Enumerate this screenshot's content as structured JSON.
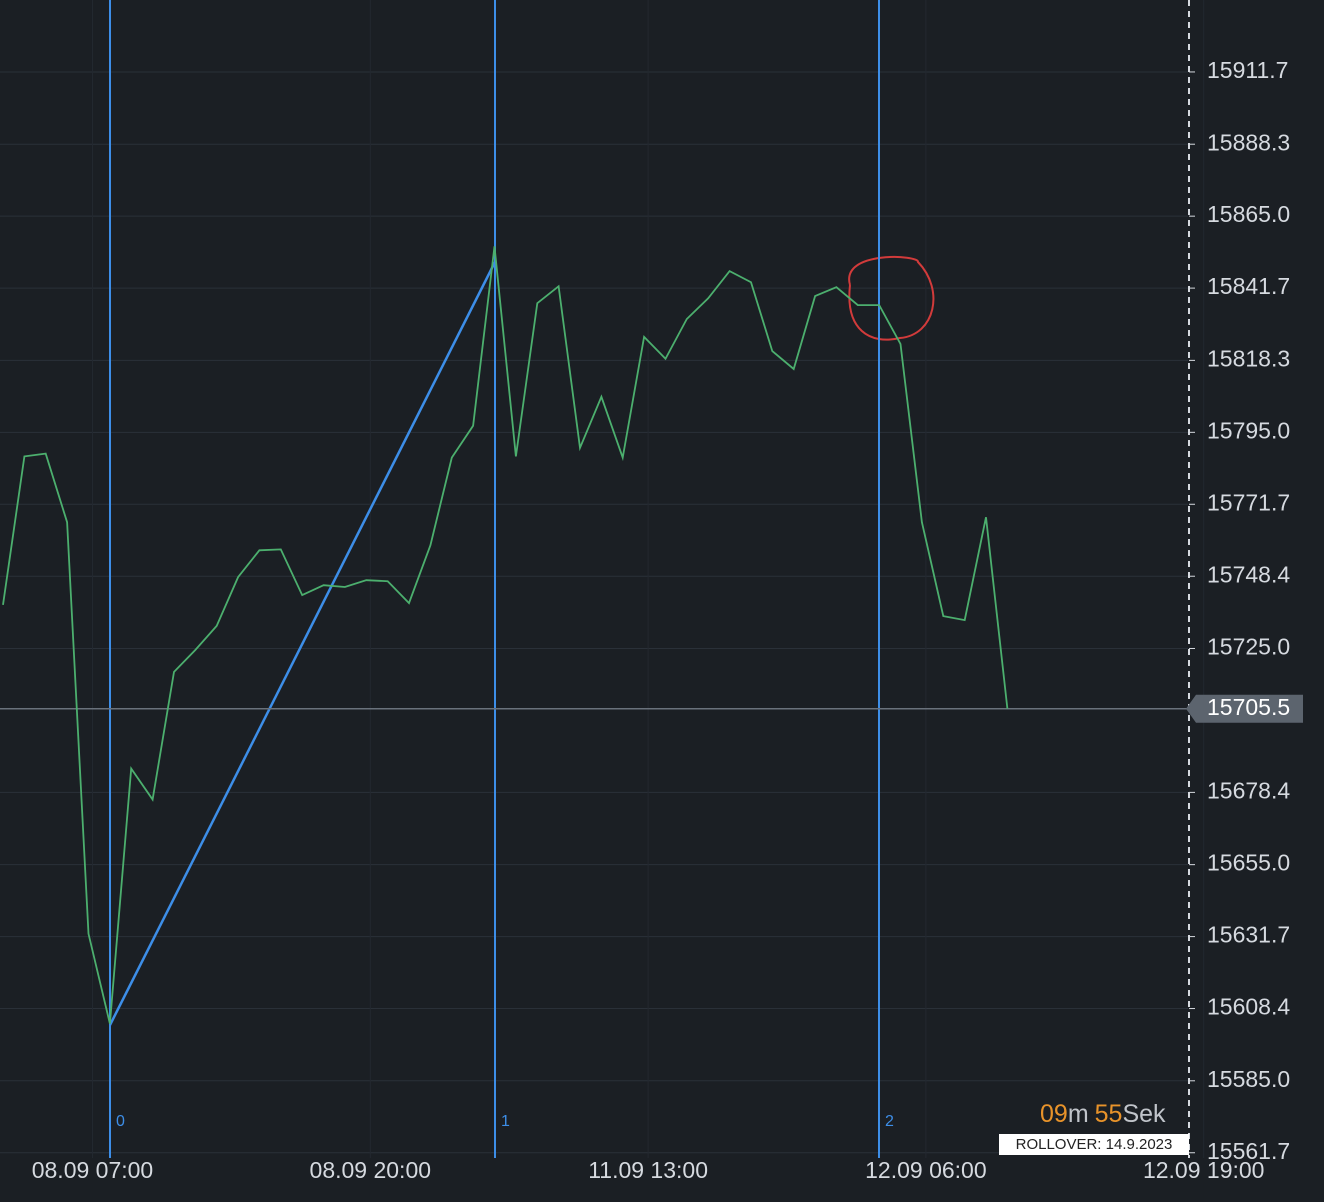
{
  "chart_data": {
    "type": "line",
    "categories": [
      null,
      null,
      null,
      null,
      "08.09 07:00",
      null,
      null,
      null,
      null,
      null,
      null,
      null,
      null,
      null,
      null,
      null,
      null,
      "08.09 20:00",
      null,
      null,
      null,
      null,
      null,
      null,
      null,
      null,
      null,
      null,
      null,
      null,
      "11.09 13:00",
      null,
      null,
      null,
      null,
      null,
      null,
      null,
      null,
      null,
      null,
      null,
      null,
      "12.09 06:00",
      null,
      null,
      null,
      null,
      null,
      null,
      null,
      null,
      null,
      null,
      null,
      null,
      "12.09 19:00"
    ],
    "series": [
      {
        "color": "#4caf6e",
        "values": [
          15739.1,
          15787.2,
          15788.1,
          15765.9,
          15632.6,
          15603.5,
          15686.1,
          15676.1,
          15717.4,
          15724.5,
          15732.3,
          15748.1,
          15756.8,
          15757.1,
          15742.3,
          15745.5,
          15744.9,
          15747.1,
          15746.8,
          15739.7,
          15758.4,
          15786.8,
          15797.1,
          15855.2,
          15787.2,
          15836.8,
          15842.3,
          15790.0,
          15806.5,
          15786.8,
          15825.9,
          15818.8,
          15831.7,
          15838.4,
          15847.2,
          15843.6,
          15821.3,
          15815.5,
          15839.1,
          15842.0,
          15836.2,
          15836.2,
          15823.6,
          15765.9,
          15735.5,
          15734.2,
          15767.5,
          15705.5,
          null,
          null,
          null,
          null,
          null,
          null,
          null,
          null,
          null
        ]
      }
    ],
    "ylim": [
      15560,
      15935
    ],
    "yticks": [
      15911.7,
      15888.3,
      {
        "value": 15865,
        "label": "15865.0"
      },
      15841.7,
      15818.3,
      {
        "value": 15795,
        "label": "15795.0"
      },
      15771.7,
      15748.4,
      {
        "value": 15725,
        "label": "15725.0"
      },
      15678.4,
      {
        "value": 15655,
        "label": "15655.0"
      },
      15631.7,
      15608.4,
      {
        "value": 15585,
        "label": "15585.0"
      },
      15561.7
    ],
    "current_price": 15705.5,
    "grid": true,
    "markers": [
      "0",
      "1",
      "2"
    ],
    "countdown": {
      "minutes": "09",
      "minutes_unit": "m",
      "seconds": "55",
      "seconds_unit": "Sek"
    },
    "rollover": "ROLLOVER: 14.9.2023"
  }
}
